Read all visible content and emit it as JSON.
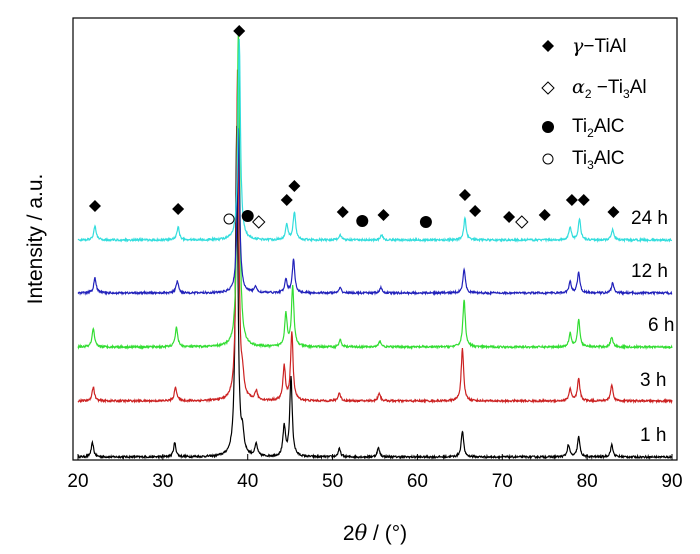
{
  "chart_data": {
    "type": "line",
    "xlabel": "2θ / (°)",
    "xlabel_parts": {
      "num": "2",
      "theta": "θ",
      "unit": " / (°)"
    },
    "ylabel": "Intensity / a.u.",
    "xlim": [
      20,
      90
    ],
    "x_ticks": [
      20,
      30,
      40,
      50,
      60,
      70,
      80,
      90
    ],
    "y_ticks_shown": false,
    "grid": false,
    "legend_position": "top-right",
    "series": [
      {
        "name": "1 h",
        "color": "#000000",
        "peaks": [
          [
            21.7,
            14
          ],
          [
            31.4,
            14
          ],
          [
            38.7,
            330
          ],
          [
            39.4,
            18
          ],
          [
            41.0,
            12
          ],
          [
            44.3,
            30
          ],
          [
            45.1,
            80
          ],
          [
            50.8,
            8
          ],
          [
            55.4,
            9
          ],
          [
            65.3,
            26
          ],
          [
            77.8,
            12
          ],
          [
            79.0,
            20
          ],
          [
            82.9,
            12
          ]
        ]
      },
      {
        "name": "3 h",
        "color": "#cc2222",
        "peaks": [
          [
            21.8,
            14
          ],
          [
            31.5,
            14
          ],
          [
            38.8,
            330
          ],
          [
            39.4,
            16
          ],
          [
            41.0,
            9
          ],
          [
            44.3,
            34
          ],
          [
            45.2,
            68
          ],
          [
            50.8,
            8
          ],
          [
            55.5,
            8
          ],
          [
            65.3,
            52
          ],
          [
            78.0,
            12
          ],
          [
            79.0,
            22
          ],
          [
            82.9,
            16
          ]
        ]
      },
      {
        "name": "6 h",
        "color": "#33dd33",
        "peaks": [
          [
            21.8,
            18
          ],
          [
            31.6,
            20
          ],
          [
            38.9,
            320
          ],
          [
            44.5,
            33
          ],
          [
            45.3,
            60
          ],
          [
            50.9,
            7
          ],
          [
            55.6,
            6
          ],
          [
            65.5,
            48
          ],
          [
            78.0,
            14
          ],
          [
            79.0,
            27
          ],
          [
            82.9,
            10
          ]
        ]
      },
      {
        "name": "12 h",
        "color": "#2222bb",
        "peaks": [
          [
            22.0,
            15
          ],
          [
            31.7,
            12
          ],
          [
            38.9,
            165
          ],
          [
            40.9,
            6
          ],
          [
            44.5,
            13
          ],
          [
            45.4,
            34
          ],
          [
            50.9,
            5
          ],
          [
            55.7,
            5
          ],
          [
            65.5,
            24
          ],
          [
            78.0,
            11
          ],
          [
            79.0,
            21
          ],
          [
            83.0,
            10
          ]
        ]
      },
      {
        "name": "24 h",
        "color": "#33dddd",
        "peaks": [
          [
            22.0,
            14
          ],
          [
            31.8,
            13
          ],
          [
            39.0,
            200
          ],
          [
            44.6,
            16
          ],
          [
            45.5,
            28
          ],
          [
            50.9,
            5
          ],
          [
            55.8,
            5
          ],
          [
            65.6,
            22
          ],
          [
            78.0,
            13
          ],
          [
            79.1,
            21
          ],
          [
            83.0,
            10
          ]
        ]
      }
    ],
    "legend": [
      {
        "marker": "filled-diamond",
        "label": "γ−TiAl",
        "label_parts": [
          "γ",
          "−TiAl",
          ""
        ]
      },
      {
        "marker": "open-diamond",
        "label": "α2 −Ti3Al",
        "label_parts": [
          "α",
          "2",
          " −Ti",
          "3",
          "Al"
        ]
      },
      {
        "marker": "filled-circle",
        "label": "Ti2AlC",
        "label_parts": [
          "Ti",
          "2",
          "AlC"
        ]
      },
      {
        "marker": "open-circle",
        "label": "Ti3AlC",
        "label_parts": [
          "Ti",
          "3",
          "AlC"
        ]
      }
    ],
    "phase_markers": [
      {
        "x": 22.0,
        "marker": "filled-diamond",
        "level": "above-24h"
      },
      {
        "x": 31.8,
        "marker": "filled-diamond",
        "level": "above-24h"
      },
      {
        "x": 37.8,
        "marker": "open-circle",
        "level": "above-24h"
      },
      {
        "x": 39.0,
        "marker": "filled-diamond",
        "level": "top"
      },
      {
        "x": 40.0,
        "marker": "filled-circle",
        "level": "above-24h"
      },
      {
        "x": 41.3,
        "marker": "open-diamond",
        "level": "above-24h"
      },
      {
        "x": 44.6,
        "marker": "filled-diamond",
        "level": "above-24h"
      },
      {
        "x": 45.5,
        "marker": "filled-diamond",
        "level": "above-24h"
      },
      {
        "x": 51.2,
        "marker": "filled-diamond",
        "level": "above-24h"
      },
      {
        "x": 53.5,
        "marker": "filled-circle",
        "level": "above-24h"
      },
      {
        "x": 56.0,
        "marker": "filled-diamond",
        "level": "above-24h"
      },
      {
        "x": 61.0,
        "marker": "filled-circle",
        "level": "above-24h"
      },
      {
        "x": 65.6,
        "marker": "filled-diamond",
        "level": "above-24h"
      },
      {
        "x": 66.8,
        "marker": "filled-diamond",
        "level": "above-24h"
      },
      {
        "x": 70.8,
        "marker": "filled-diamond",
        "level": "above-24h"
      },
      {
        "x": 72.3,
        "marker": "open-diamond",
        "level": "above-24h"
      },
      {
        "x": 75.0,
        "marker": "filled-diamond",
        "level": "above-24h"
      },
      {
        "x": 78.2,
        "marker": "filled-diamond",
        "level": "above-24h"
      },
      {
        "x": 79.6,
        "marker": "filled-diamond",
        "level": "above-24h"
      },
      {
        "x": 83.1,
        "marker": "filled-diamond",
        "level": "above-24h"
      }
    ]
  }
}
